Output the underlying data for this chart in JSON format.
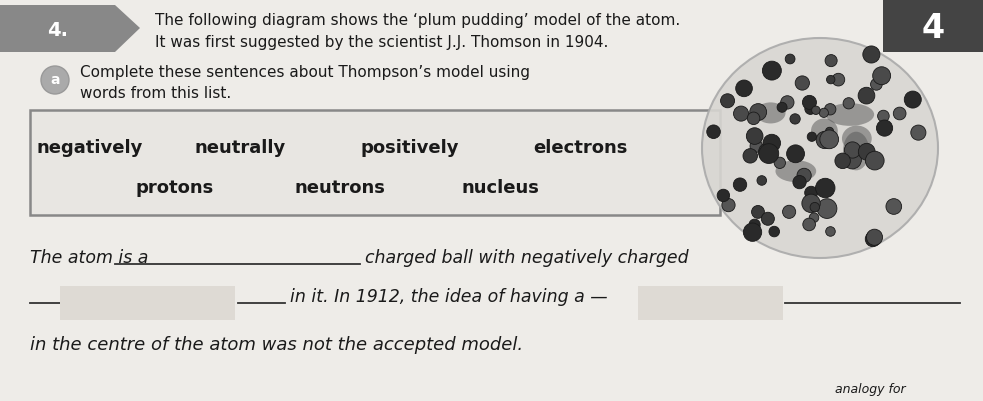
{
  "background_color": "#eeece8",
  "title_number": "4.",
  "corner_number": "4",
  "header_line1": "The following diagram shows the ‘plum pudding’ model of the atom.",
  "header_line2": "It was first suggested by the scientist J.J. Thomson in 1904.",
  "sub_label": "a",
  "sub_text_line1": "Complete these sentences about Thompson’s model using",
  "sub_text_line2": "words from this list.",
  "word_box_words_row1": [
    "negatively",
    "neutrally",
    "positively",
    "electrons"
  ],
  "word_box_words_row2": [
    "protons",
    "neutrons",
    "nucleus"
  ],
  "sentence_line1_pre": "The atom is a",
  "sentence_line1_post": "charged ball with negatively charged",
  "sentence_line2_post": "in it. In 1912, the idea of having a —",
  "sentence_line3": "in the centre of the atom was not the accepted model.",
  "bold_text_color": "#1a1a1a",
  "box_border_color": "#777777",
  "pentagon_color": "#777777",
  "corner_box_color": "#444444"
}
